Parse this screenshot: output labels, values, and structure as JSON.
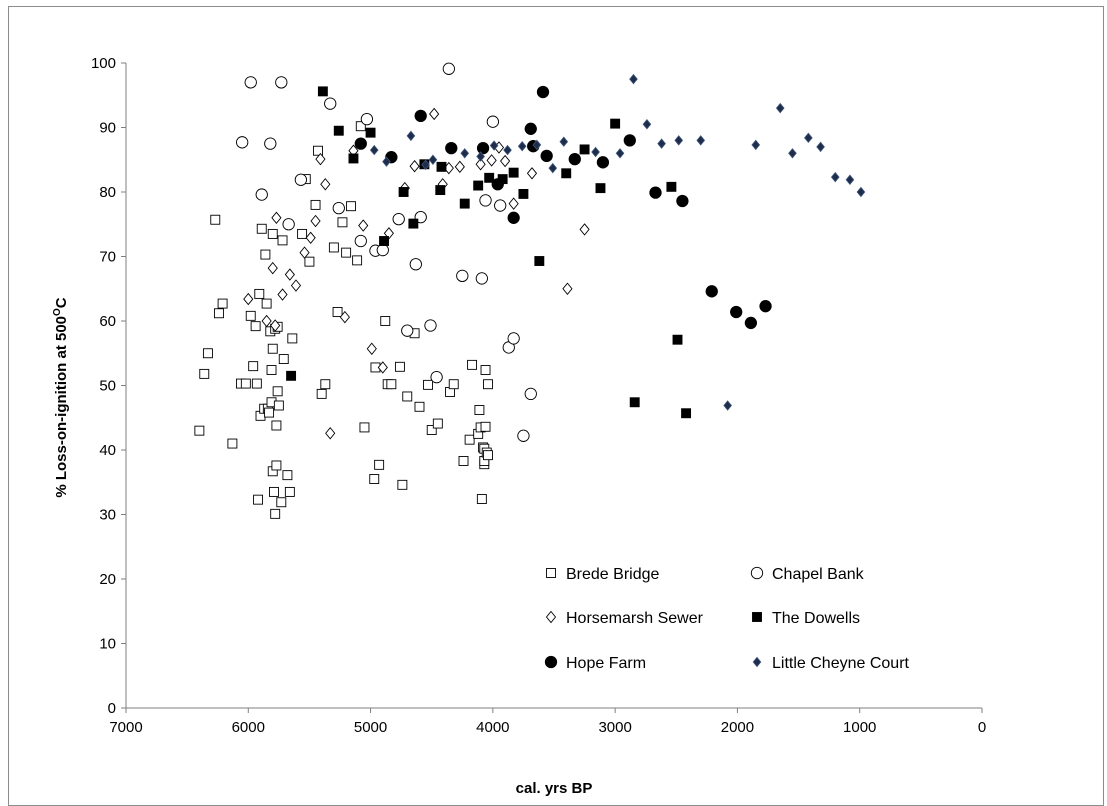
{
  "chart_data": {
    "type": "scatter",
    "xlabel": "cal. yrs BP",
    "ylabel_main": "% Loss-on-ignition at 500",
    "ylabel_sup": "O",
    "ylabel_end": "C",
    "xlim": [
      7000,
      0
    ],
    "ylim": [
      0,
      100
    ],
    "x_ticks": [
      7000,
      6000,
      5000,
      4000,
      3000,
      2000,
      1000,
      0
    ],
    "y_ticks": [
      0,
      10,
      20,
      30,
      40,
      50,
      60,
      70,
      80,
      90,
      100
    ],
    "grid": false,
    "legend_position": "bottom-right",
    "series": [
      {
        "name": "Brede Bridge",
        "marker": "open-square",
        "points": [
          [
            6400,
            43
          ],
          [
            6360,
            51.8
          ],
          [
            6330,
            55
          ],
          [
            6270,
            75.7
          ],
          [
            6240,
            61.2
          ],
          [
            6210,
            62.7
          ],
          [
            6130,
            41
          ],
          [
            6060,
            50.3
          ],
          [
            6020,
            50.3
          ],
          [
            5980,
            60.8
          ],
          [
            5960,
            53
          ],
          [
            5940,
            59.2
          ],
          [
            5930,
            50.3
          ],
          [
            5920,
            32.3
          ],
          [
            5910,
            64.2
          ],
          [
            5900,
            45.3
          ],
          [
            5890,
            74.3
          ],
          [
            5870,
            46.4
          ],
          [
            5860,
            70.3
          ],
          [
            5850,
            62.7
          ],
          [
            5840,
            46.4
          ],
          [
            5830,
            45.8
          ],
          [
            5820,
            58.4
          ],
          [
            5810,
            52.4
          ],
          [
            5810,
            47.4
          ],
          [
            5800,
            36.7
          ],
          [
            5800,
            55.7
          ],
          [
            5800,
            73.5
          ],
          [
            5790,
            33.5
          ],
          [
            5780,
            30.1
          ],
          [
            5780,
            58.8
          ],
          [
            5770,
            37.6
          ],
          [
            5770,
            43.8
          ],
          [
            5760,
            49.1
          ],
          [
            5760,
            59.1
          ],
          [
            5750,
            46.9
          ],
          [
            5730,
            31.9
          ],
          [
            5720,
            72.5
          ],
          [
            5710,
            54.1
          ],
          [
            5680,
            36.1
          ],
          [
            5660,
            33.5
          ],
          [
            5640,
            57.3
          ],
          [
            5560,
            73.5
          ],
          [
            5530,
            82
          ],
          [
            5500,
            69.2
          ],
          [
            5450,
            78
          ],
          [
            5430,
            86.4
          ],
          [
            5400,
            48.7
          ],
          [
            5370,
            50.2
          ],
          [
            5300,
            71.4
          ],
          [
            5270,
            61.4
          ],
          [
            5230,
            75.3
          ],
          [
            5200,
            70.6
          ],
          [
            5160,
            77.8
          ],
          [
            5110,
            69.4
          ],
          [
            5080,
            90.2
          ],
          [
            5050,
            43.5
          ],
          [
            4970,
            35.5
          ],
          [
            4960,
            52.8
          ],
          [
            4930,
            37.7
          ],
          [
            4880,
            60
          ],
          [
            4860,
            50.2
          ],
          [
            4830,
            50.2
          ],
          [
            4760,
            52.9
          ],
          [
            4740,
            34.6
          ],
          [
            4700,
            48.3
          ],
          [
            4640,
            58.1
          ],
          [
            4600,
            46.7
          ],
          [
            4530,
            50.1
          ],
          [
            4500,
            43.1
          ],
          [
            4450,
            44.1
          ],
          [
            4350,
            49
          ],
          [
            4320,
            50.2
          ],
          [
            4240,
            38.3
          ],
          [
            4190,
            41.6
          ],
          [
            4170,
            53.2
          ],
          [
            4120,
            42.5
          ],
          [
            4110,
            46.2
          ],
          [
            4100,
            43.5
          ],
          [
            4090,
            32.4
          ],
          [
            4080,
            40.4
          ],
          [
            4070,
            37.8
          ],
          [
            4070,
            38.3
          ],
          [
            4070,
            40.2
          ],
          [
            4060,
            43.6
          ],
          [
            4060,
            52.4
          ],
          [
            4050,
            39.6
          ],
          [
            4040,
            50.2
          ],
          [
            4040,
            39.2
          ]
        ]
      },
      {
        "name": "Chapel Bank",
        "marker": "open-circle",
        "points": [
          [
            6050,
            87.7
          ],
          [
            5980,
            97
          ],
          [
            5890,
            79.6
          ],
          [
            5820,
            87.5
          ],
          [
            5730,
            97
          ],
          [
            5670,
            75
          ],
          [
            5570,
            81.9
          ],
          [
            5330,
            93.7
          ],
          [
            5260,
            77.5
          ],
          [
            5080,
            72.4
          ],
          [
            5030,
            91.3
          ],
          [
            4960,
            70.9
          ],
          [
            4900,
            71
          ],
          [
            4770,
            75.8
          ],
          [
            4700,
            58.5
          ],
          [
            4630,
            68.8
          ],
          [
            4590,
            76.1
          ],
          [
            4510,
            59.3
          ],
          [
            4460,
            51.3
          ],
          [
            4360,
            99.1
          ],
          [
            4250,
            67
          ],
          [
            4090,
            66.6
          ],
          [
            4060,
            78.7
          ],
          [
            4000,
            90.9
          ],
          [
            3940,
            77.9
          ],
          [
            3870,
            55.9
          ],
          [
            3830,
            57.3
          ],
          [
            3750,
            42.2
          ],
          [
            3690,
            48.7
          ]
        ]
      },
      {
        "name": "Horsemarsh Sewer",
        "marker": "open-diamond",
        "points": [
          [
            6000,
            63.4
          ],
          [
            5850,
            60
          ],
          [
            5800,
            68.2
          ],
          [
            5780,
            59.3
          ],
          [
            5770,
            76
          ],
          [
            5720,
            64.1
          ],
          [
            5660,
            67.2
          ],
          [
            5610,
            65.5
          ],
          [
            5540,
            70.6
          ],
          [
            5490,
            72.9
          ],
          [
            5450,
            75.5
          ],
          [
            5410,
            85.1
          ],
          [
            5370,
            81.2
          ],
          [
            5330,
            42.6
          ],
          [
            5210,
            60.6
          ],
          [
            5140,
            86.4
          ],
          [
            5060,
            74.8
          ],
          [
            4990,
            55.7
          ],
          [
            4900,
            52.8
          ],
          [
            4850,
            73.6
          ],
          [
            4720,
            80.6
          ],
          [
            4640,
            84
          ],
          [
            4480,
            92.1
          ],
          [
            4410,
            81.2
          ],
          [
            4360,
            83.7
          ],
          [
            4270,
            83.9
          ],
          [
            4100,
            84.3
          ],
          [
            4010,
            84.9
          ],
          [
            3950,
            86.9
          ],
          [
            3900,
            84.8
          ],
          [
            3830,
            78.2
          ],
          [
            3680,
            82.9
          ],
          [
            3390,
            65
          ],
          [
            3250,
            74.2
          ]
        ]
      },
      {
        "name": "The Dowells",
        "marker": "filled-square",
        "points": [
          [
            5650,
            51.5
          ],
          [
            5390,
            95.6
          ],
          [
            5260,
            89.5
          ],
          [
            5140,
            85.2
          ],
          [
            5000,
            89.2
          ],
          [
            4890,
            72.4
          ],
          [
            4730,
            80
          ],
          [
            4650,
            75.1
          ],
          [
            4560,
            84.3
          ],
          [
            4430,
            80.3
          ],
          [
            4420,
            83.9
          ],
          [
            4230,
            78.2
          ],
          [
            4120,
            81
          ],
          [
            4030,
            82.2
          ],
          [
            3920,
            82
          ],
          [
            3830,
            83
          ],
          [
            3750,
            79.7
          ],
          [
            3620,
            69.3
          ],
          [
            3400,
            82.9
          ],
          [
            3250,
            86.6
          ],
          [
            3120,
            80.6
          ],
          [
            3000,
            90.6
          ],
          [
            2840,
            47.4
          ],
          [
            2540,
            80.8
          ],
          [
            2490,
            57.1
          ],
          [
            2420,
            45.7
          ]
        ]
      },
      {
        "name": "Hope Farm",
        "marker": "filled-circle",
        "points": [
          [
            5080,
            87.5
          ],
          [
            4830,
            85.4
          ],
          [
            4590,
            91.8
          ],
          [
            4340,
            86.8
          ],
          [
            4080,
            86.8
          ],
          [
            3960,
            81.2
          ],
          [
            3830,
            76
          ],
          [
            3690,
            89.8
          ],
          [
            3670,
            87.1
          ],
          [
            3590,
            95.5
          ],
          [
            3560,
            85.6
          ],
          [
            3330,
            85.1
          ],
          [
            3100,
            84.6
          ],
          [
            2880,
            88
          ],
          [
            2670,
            79.9
          ],
          [
            2450,
            78.6
          ],
          [
            2210,
            64.6
          ],
          [
            2010,
            61.4
          ],
          [
            1890,
            59.7
          ],
          [
            1770,
            62.3
          ]
        ]
      },
      {
        "name": "Little Cheyne Court",
        "marker": "filled-diamond",
        "points": [
          [
            4970,
            86.5
          ],
          [
            4870,
            84.7
          ],
          [
            4670,
            88.7
          ],
          [
            4550,
            84.2
          ],
          [
            4490,
            85
          ],
          [
            4230,
            86
          ],
          [
            4100,
            85.5
          ],
          [
            3990,
            87.2
          ],
          [
            3880,
            86.5
          ],
          [
            3760,
            87.1
          ],
          [
            3640,
            87.3
          ],
          [
            3510,
            83.7
          ],
          [
            3420,
            87.8
          ],
          [
            3160,
            86.2
          ],
          [
            2960,
            86
          ],
          [
            2850,
            97.5
          ],
          [
            2740,
            90.5
          ],
          [
            2620,
            87.5
          ],
          [
            2480,
            88
          ],
          [
            2300,
            88
          ],
          [
            2080,
            46.9
          ],
          [
            1850,
            87.3
          ],
          [
            1650,
            93
          ],
          [
            1550,
            86
          ],
          [
            1420,
            88.4
          ],
          [
            1320,
            87
          ],
          [
            1200,
            82.3
          ],
          [
            1080,
            81.9
          ],
          [
            990,
            80
          ]
        ]
      }
    ]
  }
}
